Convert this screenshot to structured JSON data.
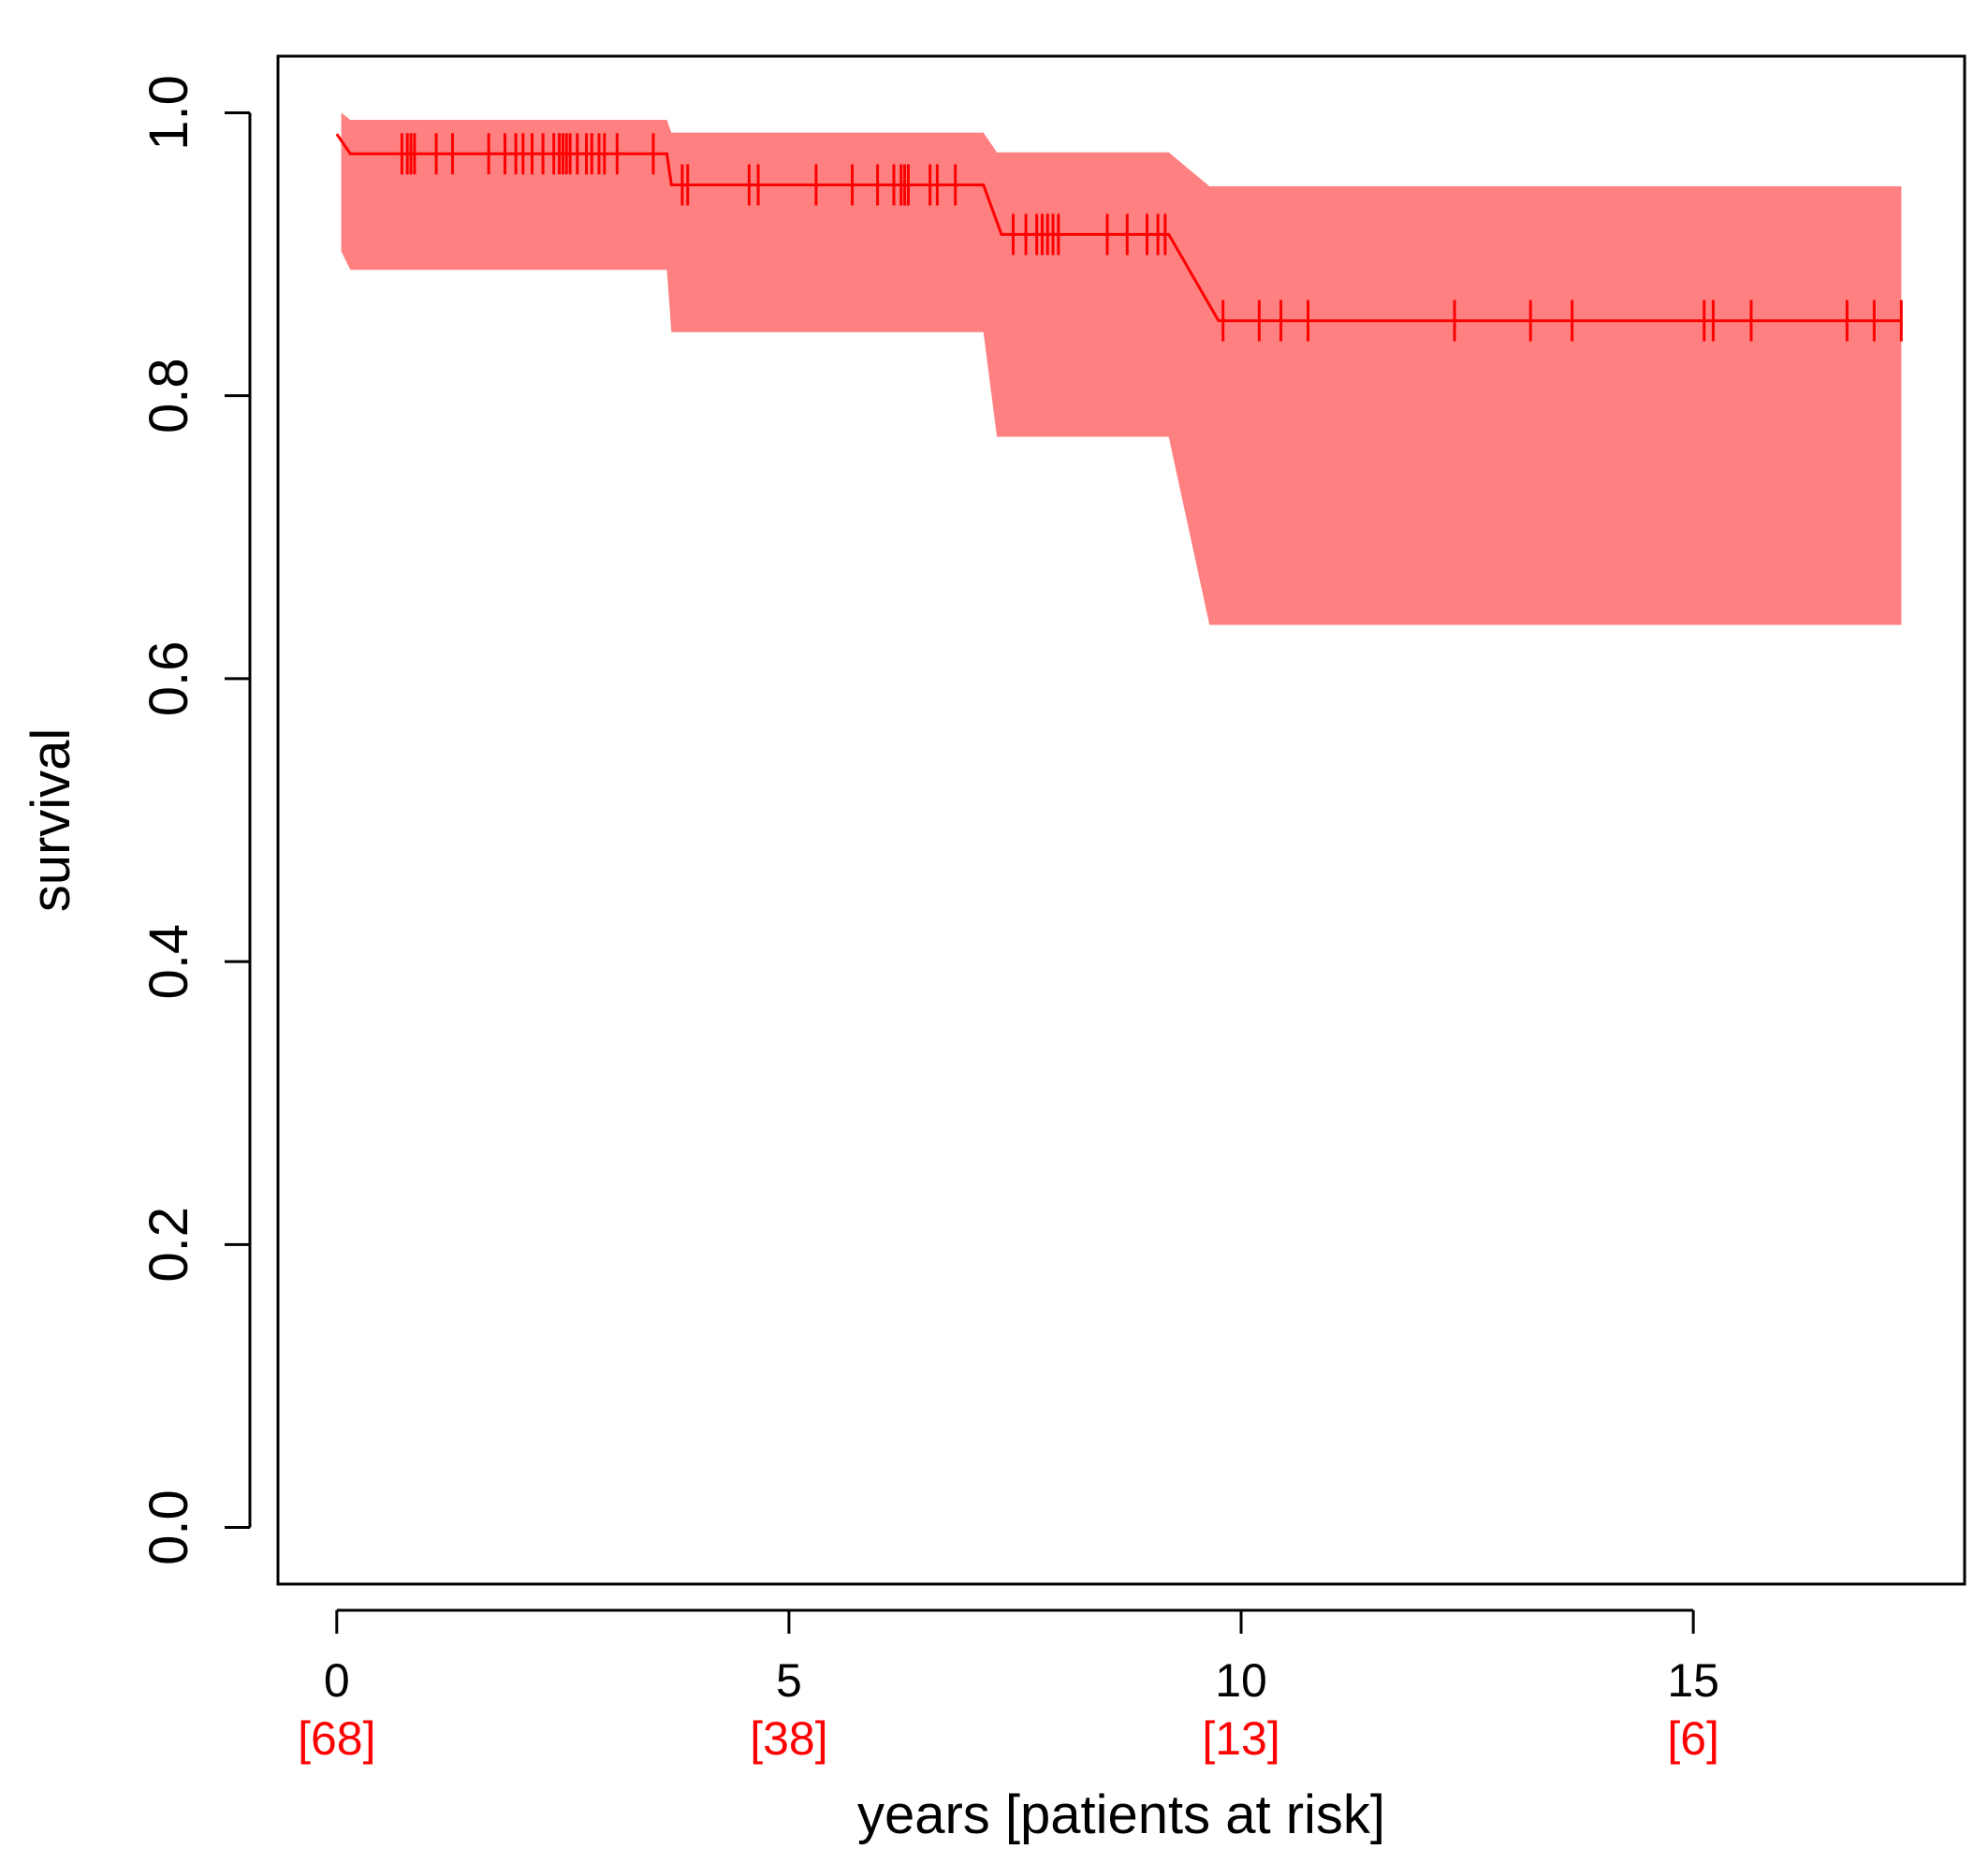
{
  "chart_data": {
    "type": "line",
    "subtype": "kaplan-meier",
    "title": "",
    "xlabel": "years [patients at risk]",
    "ylabel": "survival",
    "xlim": [
      -0.65,
      18.0
    ],
    "ylim": [
      -0.04,
      1.04
    ],
    "x_ticks": [
      0,
      5,
      10,
      15
    ],
    "x_tick_labels": [
      "0",
      "5",
      "10",
      "15"
    ],
    "y_ticks": [
      0.0,
      0.2,
      0.4,
      0.6,
      0.8,
      1.0
    ],
    "y_tick_labels": [
      "0.0",
      "0.2",
      "0.4",
      "0.6",
      "0.8",
      "1.0"
    ],
    "risk_labels": [
      "[68]",
      "[38]",
      "[13]",
      "[6]"
    ],
    "grid": false,
    "colors": {
      "curve": "#ff0000",
      "band": "#ff8080",
      "axis": "#000000",
      "risk_text": "#ff0000"
    },
    "series": [
      {
        "name": "survival",
        "steps": [
          {
            "x": 0.0,
            "y": 0.985
          },
          {
            "x": 0.15,
            "y": 0.971
          },
          {
            "x": 3.65,
            "y": 0.971
          },
          {
            "x": 3.7,
            "y": 0.949
          },
          {
            "x": 7.15,
            "y": 0.949
          },
          {
            "x": 7.35,
            "y": 0.914
          },
          {
            "x": 9.2,
            "y": 0.914
          },
          {
            "x": 9.75,
            "y": 0.853
          },
          {
            "x": 17.3,
            "y": 0.853
          }
        ],
        "ci_upper": [
          {
            "x": 0.05,
            "y": 1.0
          },
          {
            "x": 0.15,
            "y": 0.995
          },
          {
            "x": 3.65,
            "y": 0.995
          },
          {
            "x": 3.7,
            "y": 0.986
          },
          {
            "x": 7.15,
            "y": 0.986
          },
          {
            "x": 7.3,
            "y": 0.972
          },
          {
            "x": 9.2,
            "y": 0.972
          },
          {
            "x": 9.65,
            "y": 0.948
          },
          {
            "x": 17.3,
            "y": 0.948
          }
        ],
        "ci_lower": [
          {
            "x": 0.05,
            "y": 0.902
          },
          {
            "x": 0.15,
            "y": 0.889
          },
          {
            "x": 3.65,
            "y": 0.889
          },
          {
            "x": 3.7,
            "y": 0.845
          },
          {
            "x": 7.15,
            "y": 0.845
          },
          {
            "x": 7.3,
            "y": 0.771
          },
          {
            "x": 9.2,
            "y": 0.771
          },
          {
            "x": 9.65,
            "y": 0.638
          },
          {
            "x": 17.3,
            "y": 0.638
          }
        ],
        "censor_times": [
          0.72,
          0.78,
          0.82,
          0.86,
          1.1,
          1.28,
          1.68,
          1.86,
          1.98,
          2.06,
          2.16,
          2.28,
          2.4,
          2.46,
          2.5,
          2.54,
          2.58,
          2.66,
          2.76,
          2.82,
          2.9,
          2.96,
          3.1,
          3.5,
          3.82,
          3.88,
          4.56,
          4.66,
          5.3,
          5.7,
          5.98,
          6.16,
          6.24,
          6.28,
          6.32,
          6.56,
          6.64,
          6.84,
          7.48,
          7.62,
          7.74,
          7.8,
          7.86,
          7.92,
          7.98,
          8.52,
          8.74,
          8.96,
          9.08,
          9.16,
          9.8,
          10.2,
          10.44,
          10.74,
          12.36,
          13.2,
          13.66,
          15.12,
          15.22,
          15.64,
          16.7,
          17.0,
          17.3
        ]
      }
    ]
  }
}
